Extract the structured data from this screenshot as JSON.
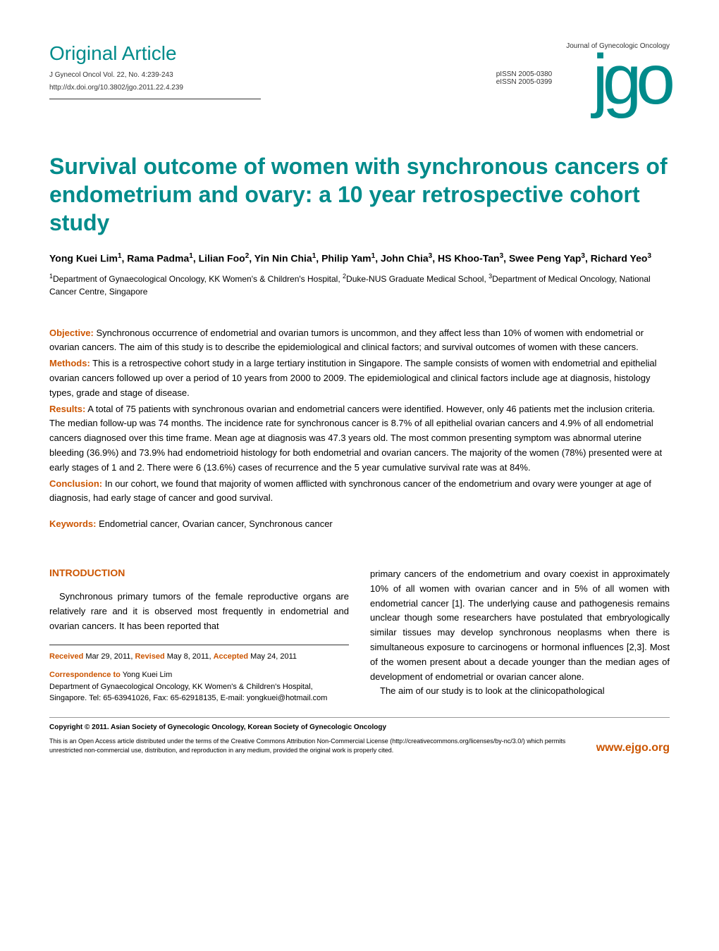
{
  "header": {
    "article_type": "Original Article",
    "citation": "J Gynecol Oncol Vol. 22, No. 4:239-243",
    "doi": "http://dx.doi.org/10.3802/jgo.2011.22.4.239",
    "pissn": "pISSN 2005-0380",
    "eissn": "eISSN 2005-0399",
    "journal_name": "Journal of Gynecologic Oncology",
    "logo_text": "jgo"
  },
  "title": "Survival outcome of women with synchronous cancers of endometrium and ovary: a 10 year retrospective cohort study",
  "authors_html": "Yong Kuei Lim<sup>1</sup>, Rama Padma<sup>1</sup>, Lilian Foo<sup>2</sup>, Yin Nin Chia<sup>1</sup>, Philip Yam<sup>1</sup>, John Chia<sup>3</sup>, HS Khoo-Tan<sup>3</sup>, Swee Peng Yap<sup>3</sup>, Richard Yeo<sup>3</sup>",
  "affiliations_html": "<sup>1</sup>Department of Gynaecological Oncology, KK Women's & Children's Hospital, <sup>2</sup>Duke-NUS Graduate Medical School, <sup>3</sup>Department of Medical Oncology, National Cancer Centre, Singapore",
  "abstract": {
    "objective_label": "Objective:",
    "objective": " Synchronous occurrence of endometrial and ovarian tumors is uncommon, and they affect less than 10% of women with endometrial or ovarian cancers. The aim of this study is to describe the epidemiological and clinical factors; and survival outcomes of women with these cancers.",
    "methods_label": "Methods:",
    "methods": " This is a retrospective cohort study in a large tertiary institution in Singapore. The sample consists of women with endometrial and epithelial ovarian cancers followed up over a period of 10 years from 2000 to 2009. The epidemiological and clinical factors include age at diagnosis, histology types, grade and stage of disease.",
    "results_label": "Results:",
    "results": " A total of 75 patients with synchronous ovarian and endometrial cancers were identified. However, only 46 patients met the inclusion criteria. The median follow-up was 74 months. The incidence rate for synchronous cancer is 8.7% of all epithelial ovarian cancers and 4.9% of all endometrial cancers diagnosed over this time frame. Mean age at diagnosis was 47.3 years old. The most common presenting symptom was abnormal uterine bleeding (36.9%) and 73.9% had endometrioid histology for both endometrial and ovarian cancers. The majority of the women (78%) presented were at early stages of 1 and 2. There were 6 (13.6%) cases of recurrence and the 5 year cumulative survival rate was at 84%.",
    "conclusion_label": "Conclusion:",
    "conclusion": " In our cohort, we found that majority of women afflicted with synchronous cancer of the endometrium and ovary were younger at age of diagnosis, had early stage of cancer and good survival."
  },
  "keywords": {
    "label": "Keywords:",
    "text": " Endometrial cancer, Ovarian cancer, Synchronous cancer"
  },
  "introduction": {
    "heading": "INTRODUCTION",
    "left_para": "Synchronous primary tumors of the female reproductive organs are relatively rare and it is observed most frequently in endometrial and ovarian cancers. It has been reported that",
    "right_para1": "primary cancers of the endometrium and ovary coexist in approximately 10% of all women with ovarian cancer and in 5% of all women with endometrial cancer [1]. The underlying cause and pathogenesis remains unclear though some researchers have postulated that embryologically similar tissues may develop synchronous neoplasms when there is simultaneous exposure to carcinogens or hormonal influences [2,3]. Most of the women present about a decade younger than the median ages of development of endometrial or ovarian cancer alone.",
    "right_para2": "The aim of our study is to look at the clinicopathological"
  },
  "dates": {
    "received_label": "Received",
    "received": " Mar 29, 2011, ",
    "revised_label": "Revised",
    "revised": " May 8, 2011, ",
    "accepted_label": "Accepted",
    "accepted": " May 24, 2011"
  },
  "correspondence": {
    "label": "Correspondence to",
    "name": " Yong Kuei Lim",
    "details": "Department of Gynaecological Oncology, KK Women's & Children's Hospital, Singapore. Tel: 65-63941026, Fax: 65-62918135, E-mail: yongkuei@hotmail.com"
  },
  "copyright": "Copyright © 2011. Asian Society of Gynecologic Oncology, Korean Society of Gynecologic Oncology",
  "license": "This is an Open Access article distributed under the terms of the Creative Commons Attribution Non-Commercial License (http://creativecommons.org/licenses/by-nc/3.0/) which permits unrestricted non-commercial use, distribution, and reproduction in any medium, provided the original work is properly cited.",
  "website": "www.ejgo.org",
  "colors": {
    "teal": "#008b8b",
    "orange": "#cc5500",
    "text": "#333333"
  }
}
